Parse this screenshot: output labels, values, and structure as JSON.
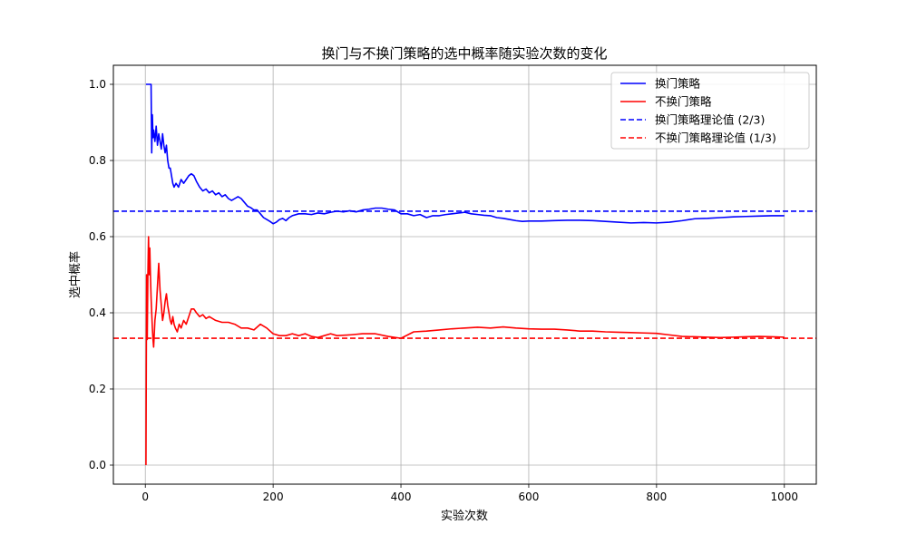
{
  "chart_data": {
    "type": "line",
    "title": "换门与不换门策略的选中概率随实验次数的变化",
    "xlabel": "实验次数",
    "ylabel": "选中概率",
    "xlim": [
      -50,
      1050
    ],
    "ylim": [
      -0.05,
      1.05
    ],
    "xticks": [
      0,
      200,
      400,
      600,
      800,
      1000
    ],
    "yticks": [
      0.0,
      0.2,
      0.4,
      0.6,
      0.8,
      1.0
    ],
    "xtick_labels": [
      "0",
      "200",
      "400",
      "600",
      "800",
      "1000"
    ],
    "ytick_labels": [
      "0.0",
      "0.2",
      "0.4",
      "0.6",
      "0.8",
      "1.0"
    ],
    "grid": true,
    "legend_position": "top-right",
    "series": [
      {
        "name": "换门策略",
        "color": "#0000ff",
        "style": "solid",
        "x": [
          1,
          5,
          9,
          10,
          11,
          12,
          13,
          15,
          17,
          19,
          21,
          23,
          25,
          27,
          29,
          31,
          33,
          35,
          37,
          39,
          41,
          43,
          45,
          48,
          52,
          56,
          60,
          64,
          68,
          72,
          76,
          80,
          85,
          90,
          95,
          100,
          105,
          110,
          115,
          120,
          125,
          130,
          135,
          140,
          145,
          150,
          155,
          160,
          165,
          170,
          175,
          180,
          185,
          190,
          195,
          200,
          205,
          210,
          215,
          220,
          225,
          230,
          240,
          250,
          260,
          270,
          280,
          290,
          300,
          310,
          320,
          330,
          340,
          350,
          360,
          370,
          380,
          390,
          400,
          410,
          420,
          430,
          440,
          450,
          460,
          470,
          480,
          490,
          500,
          510,
          520,
          530,
          540,
          550,
          560,
          570,
          580,
          590,
          600,
          620,
          640,
          660,
          680,
          700,
          720,
          740,
          760,
          780,
          800,
          820,
          840,
          860,
          880,
          900,
          920,
          940,
          960,
          980,
          1000
        ],
        "y": [
          1.0,
          1.0,
          1.0,
          0.82,
          0.92,
          0.86,
          0.88,
          0.85,
          0.89,
          0.84,
          0.87,
          0.85,
          0.83,
          0.87,
          0.84,
          0.82,
          0.84,
          0.8,
          0.78,
          0.78,
          0.76,
          0.74,
          0.73,
          0.74,
          0.73,
          0.75,
          0.74,
          0.75,
          0.76,
          0.765,
          0.76,
          0.745,
          0.73,
          0.72,
          0.725,
          0.715,
          0.72,
          0.71,
          0.715,
          0.705,
          0.71,
          0.7,
          0.695,
          0.7,
          0.705,
          0.7,
          0.69,
          0.68,
          0.676,
          0.67,
          0.67,
          0.66,
          0.65,
          0.645,
          0.64,
          0.634,
          0.638,
          0.645,
          0.648,
          0.642,
          0.65,
          0.655,
          0.66,
          0.66,
          0.658,
          0.662,
          0.66,
          0.664,
          0.667,
          0.665,
          0.668,
          0.665,
          0.67,
          0.672,
          0.675,
          0.675,
          0.672,
          0.67,
          0.66,
          0.66,
          0.655,
          0.658,
          0.65,
          0.655,
          0.655,
          0.658,
          0.66,
          0.662,
          0.664,
          0.66,
          0.658,
          0.656,
          0.655,
          0.65,
          0.648,
          0.645,
          0.642,
          0.64,
          0.641,
          0.641,
          0.642,
          0.643,
          0.643,
          0.642,
          0.64,
          0.638,
          0.636,
          0.637,
          0.636,
          0.638,
          0.642,
          0.647,
          0.648,
          0.65,
          0.652,
          0.653,
          0.654,
          0.655,
          0.655
        ]
      },
      {
        "name": "不换门策略",
        "color": "#ff0000",
        "style": "solid",
        "x": [
          1,
          2,
          3,
          4,
          5,
          6,
          7,
          8,
          9,
          10,
          11,
          12,
          13,
          15,
          17,
          19,
          21,
          23,
          25,
          27,
          29,
          31,
          33,
          35,
          37,
          39,
          41,
          43,
          45,
          47,
          50,
          53,
          56,
          60,
          64,
          68,
          72,
          76,
          80,
          85,
          90,
          95,
          100,
          110,
          120,
          130,
          140,
          150,
          160,
          170,
          180,
          190,
          200,
          210,
          220,
          230,
          240,
          250,
          260,
          270,
          280,
          290,
          300,
          320,
          340,
          360,
          380,
          400,
          420,
          440,
          460,
          480,
          500,
          520,
          540,
          560,
          580,
          600,
          620,
          640,
          660,
          680,
          700,
          720,
          740,
          760,
          780,
          800,
          820,
          840,
          860,
          880,
          900,
          920,
          940,
          960,
          980,
          1000
        ],
        "y": [
          0.0,
          0.5,
          0.33,
          0.5,
          0.6,
          0.5,
          0.57,
          0.5,
          0.44,
          0.4,
          0.36,
          0.33,
          0.31,
          0.38,
          0.41,
          0.47,
          0.53,
          0.46,
          0.42,
          0.38,
          0.4,
          0.43,
          0.45,
          0.42,
          0.4,
          0.38,
          0.37,
          0.39,
          0.37,
          0.36,
          0.35,
          0.37,
          0.36,
          0.38,
          0.37,
          0.39,
          0.41,
          0.41,
          0.4,
          0.39,
          0.395,
          0.385,
          0.39,
          0.38,
          0.375,
          0.375,
          0.37,
          0.36,
          0.36,
          0.355,
          0.37,
          0.36,
          0.345,
          0.34,
          0.34,
          0.345,
          0.34,
          0.345,
          0.338,
          0.335,
          0.34,
          0.345,
          0.34,
          0.342,
          0.345,
          0.345,
          0.338,
          0.333,
          0.35,
          0.352,
          0.355,
          0.358,
          0.36,
          0.362,
          0.36,
          0.363,
          0.36,
          0.358,
          0.357,
          0.357,
          0.355,
          0.352,
          0.352,
          0.35,
          0.349,
          0.348,
          0.347,
          0.346,
          0.342,
          0.338,
          0.337,
          0.336,
          0.335,
          0.336,
          0.337,
          0.338,
          0.337,
          0.336
        ]
      },
      {
        "name": "换门策略理论值 (2/3)",
        "color": "#0000ff",
        "style": "dashed",
        "hline": 0.6667
      },
      {
        "name": "不换门策略理论值 (1/3)",
        "color": "#ff0000",
        "style": "dashed",
        "hline": 0.3333
      }
    ]
  }
}
